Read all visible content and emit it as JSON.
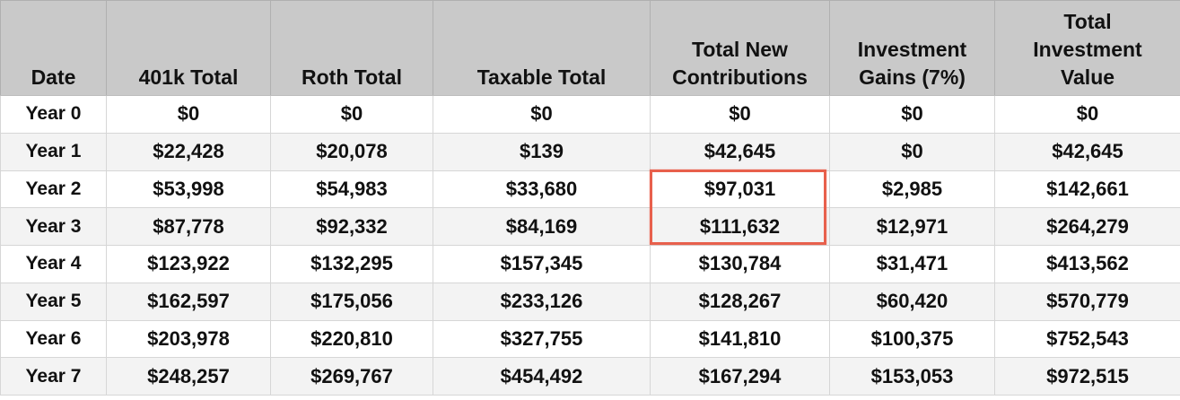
{
  "table": {
    "headers": [
      "Date",
      "401k Total",
      "Roth Total",
      "Taxable Total",
      "Total New Contributions",
      "Investment Gains (7%)",
      "Total Investment Value"
    ],
    "rows": [
      [
        "Year 0",
        "$0",
        "$0",
        "$0",
        "$0",
        "$0",
        "$0"
      ],
      [
        "Year 1",
        "$22,428",
        "$20,078",
        "$139",
        "$42,645",
        "$0",
        "$42,645"
      ],
      [
        "Year 2",
        "$53,998",
        "$54,983",
        "$33,680",
        "$97,031",
        "$2,985",
        "$142,661"
      ],
      [
        "Year 3",
        "$87,778",
        "$92,332",
        "$84,169",
        "$111,632",
        "$12,971",
        "$264,279"
      ],
      [
        "Year 4",
        "$123,922",
        "$132,295",
        "$157,345",
        "$130,784",
        "$31,471",
        "$413,562"
      ],
      [
        "Year 5",
        "$162,597",
        "$175,056",
        "$233,126",
        "$128,267",
        "$60,420",
        "$570,779"
      ],
      [
        "Year 6",
        "$203,978",
        "$220,810",
        "$327,755",
        "$141,810",
        "$100,375",
        "$752,543"
      ],
      [
        "Year 7",
        "$248,257",
        "$269,767",
        "$454,492",
        "$167,294",
        "$153,053",
        "$972,515"
      ]
    ],
    "highlight": {
      "column": "Total New Contributions",
      "rows": [
        "Year 2",
        "Year 3"
      ],
      "color": "#e8604c"
    }
  },
  "colors": {
    "header_bg": "#c9c9c9",
    "row_alt_bg": "#f3f3f3",
    "highlight_border": "#e8604c"
  }
}
